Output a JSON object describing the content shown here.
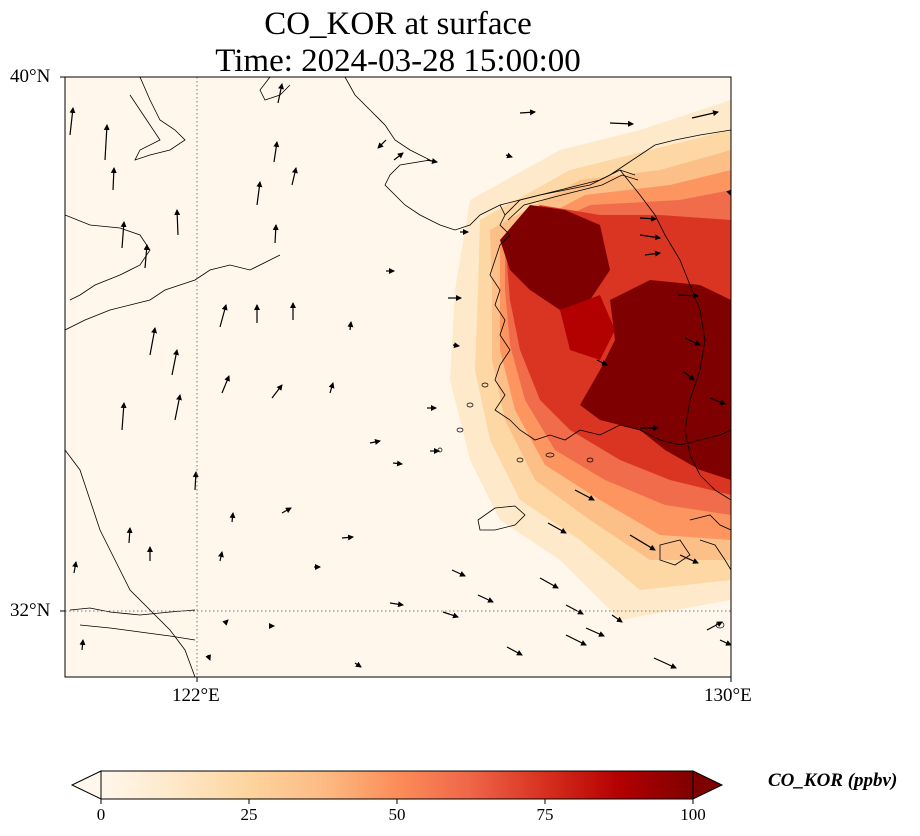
{
  "title": {
    "line1": "CO_KOR at surface",
    "line2": "Time: 2024-03-28 15:00:00"
  },
  "map": {
    "lat_range": [
      31.0,
      40.0
    ],
    "lon_range": [
      120.0,
      130.0
    ],
    "lat_ticks": [
      {
        "value": 32,
        "label": "32°N"
      },
      {
        "value": 40,
        "label": "40°N"
      }
    ],
    "lon_ticks": [
      {
        "value": 122,
        "label": "122°E"
      },
      {
        "value": 130,
        "label": "130°E"
      }
    ],
    "gridlines": "dotted at 122°E and 32°N",
    "field": "CO_KOR",
    "field_description": "high concentrations over the Korean Peninsula, low over the Yellow Sea and eastern China",
    "wind_vectors": "shown as black arrows"
  },
  "colorbar": {
    "label": "CO_KOR (ppbv)",
    "min": 0,
    "max": 100,
    "extend": "both",
    "colormap": "OrRd",
    "ticks": [
      "0",
      "25",
      "50",
      "75",
      "100"
    ],
    "colors": [
      "#fff7ec",
      "#fee8c8",
      "#fdd49e",
      "#fdbb84",
      "#fc8d59",
      "#ef6548",
      "#d7301f",
      "#b30000",
      "#7f0000"
    ]
  }
}
